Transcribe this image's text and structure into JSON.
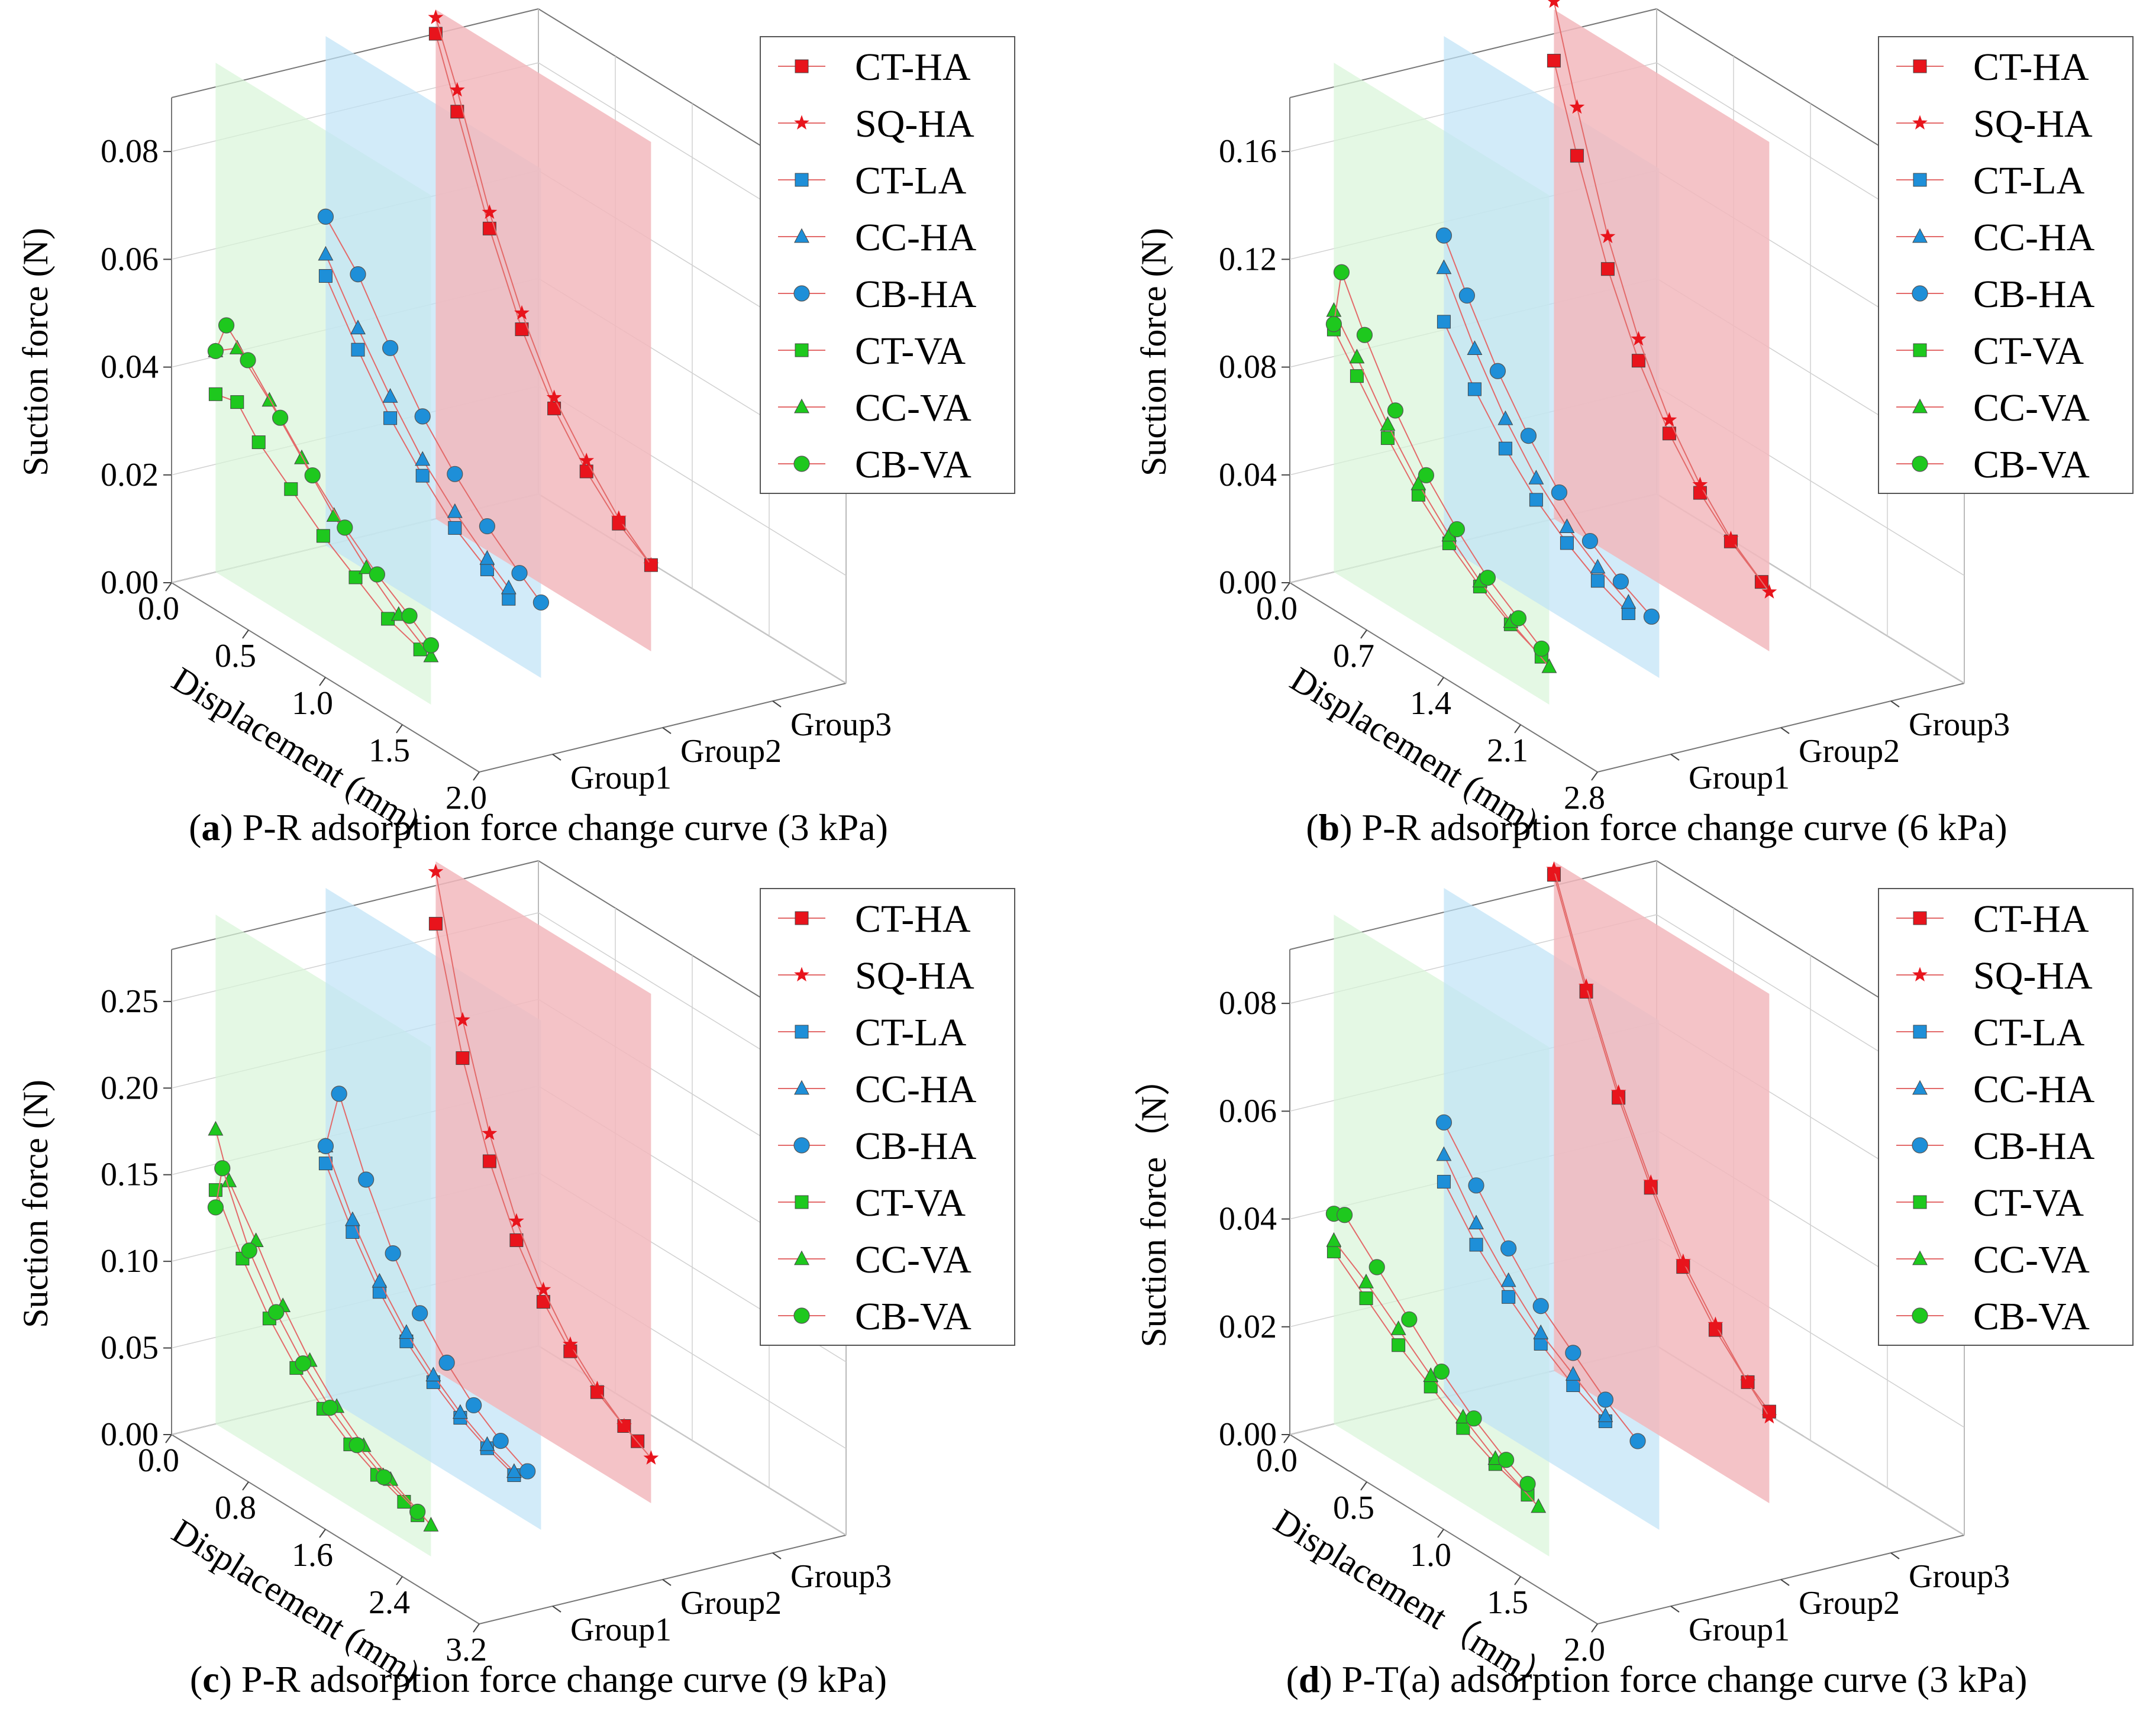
{
  "chart_data": [
    {
      "id": "a",
      "type": "line3d",
      "caption_letter": "a",
      "caption_text": "P-R adsorption force change curve (3 kPa)",
      "ylabel": "Suction force (N)",
      "xlabel": "Displacement (mm)",
      "zlabels": [
        "Group1",
        "Group2",
        "Group3"
      ],
      "x_ticks": [
        "0.0",
        "0.5",
        "1.0",
        "1.5",
        "2.0"
      ],
      "x_range": [
        0,
        2.0
      ],
      "y_ticks": [
        "0.00",
        "0.02",
        "0.04",
        "0.06",
        "0.08"
      ],
      "y_range": [
        0,
        0.09
      ],
      "legend": [
        "CT-HA",
        "SQ-HA",
        "CT-LA",
        "CC-HA",
        "CB-HA",
        "CT-VA",
        "CC-VA",
        "CB-VA"
      ],
      "series": [
        {
          "name": "CT-VA",
          "group": 0,
          "x": [
            0.0,
            0.2,
            0.4,
            0.7,
            1.0,
            1.3,
            1.6,
            1.9
          ],
          "y": [
            0.033,
            0.034,
            0.029,
            0.024,
            0.019,
            0.015,
            0.011,
            0.009
          ]
        },
        {
          "name": "CC-VA",
          "group": 0,
          "x": [
            0.0,
            0.2,
            0.5,
            0.8,
            1.1,
            1.4,
            1.7,
            2.0
          ],
          "y": [
            0.041,
            0.044,
            0.038,
            0.031,
            0.024,
            0.018,
            0.013,
            0.009
          ]
        },
        {
          "name": "CB-VA",
          "group": 0,
          "x": [
            0.0,
            0.1,
            0.3,
            0.6,
            0.9,
            1.2,
            1.5,
            1.8,
            2.0
          ],
          "y": [
            0.041,
            0.047,
            0.043,
            0.036,
            0.029,
            0.023,
            0.018,
            0.014,
            0.011
          ]
        },
        {
          "name": "CT-LA",
          "group": 1,
          "x": [
            0.0,
            0.3,
            0.6,
            0.9,
            1.2,
            1.5,
            1.7
          ],
          "y": [
            0.05,
            0.04,
            0.031,
            0.024,
            0.018,
            0.014,
            0.011
          ]
        },
        {
          "name": "CC-HA",
          "group": 1,
          "x": [
            0.0,
            0.3,
            0.6,
            0.9,
            1.2,
            1.5,
            1.7
          ],
          "y": [
            0.054,
            0.044,
            0.035,
            0.027,
            0.021,
            0.016,
            0.013
          ]
        },
        {
          "name": "CB-HA",
          "group": 1,
          "x": [
            0.0,
            0.3,
            0.6,
            0.9,
            1.2,
            1.5,
            1.8,
            2.0
          ],
          "y": [
            0.061,
            0.054,
            0.044,
            0.035,
            0.028,
            0.022,
            0.017,
            0.014
          ]
        },
        {
          "name": "CT-HA",
          "group": 2,
          "x": [
            0.0,
            0.2,
            0.5,
            0.8,
            1.1,
            1.4,
            1.7,
            2.0
          ],
          "y": [
            0.09,
            0.078,
            0.06,
            0.045,
            0.034,
            0.026,
            0.02,
            0.016
          ]
        },
        {
          "name": "SQ-HA",
          "group": 2,
          "x": [
            0.0,
            0.2,
            0.5,
            0.8,
            1.1,
            1.4,
            1.7,
            2.0
          ],
          "y": [
            0.093,
            0.082,
            0.063,
            0.048,
            0.036,
            0.028,
            0.021,
            0.016
          ]
        }
      ]
    },
    {
      "id": "b",
      "type": "line3d",
      "caption_letter": "b",
      "caption_text": "P-R adsorption force change curve (6 kPa)",
      "ylabel": "Suction force (N)",
      "xlabel": "Displacement (mm)",
      "zlabels": [
        "Group1",
        "Group2",
        "Group3"
      ],
      "x_ticks": [
        "0.0",
        "0.7",
        "1.4",
        "2.1",
        "2.8"
      ],
      "x_range": [
        0,
        2.8
      ],
      "y_ticks": [
        "0.00",
        "0.04",
        "0.08",
        "0.12",
        "0.16"
      ],
      "y_range": [
        0,
        0.18
      ],
      "legend": [
        "CT-HA",
        "SQ-HA",
        "CT-LA",
        "CC-HA",
        "CB-HA",
        "CT-VA",
        "CC-VA",
        "CB-VA"
      ],
      "series": [
        {
          "name": "CT-VA",
          "group": 0,
          "x": [
            0.0,
            0.3,
            0.7,
            1.1,
            1.5,
            1.9,
            2.3,
            2.7
          ],
          "y": [
            0.09,
            0.078,
            0.062,
            0.048,
            0.037,
            0.028,
            0.021,
            0.016
          ]
        },
        {
          "name": "CC-VA",
          "group": 0,
          "x": [
            0.0,
            0.3,
            0.7,
            1.1,
            1.5,
            1.9,
            2.3,
            2.8
          ],
          "y": [
            0.097,
            0.085,
            0.067,
            0.052,
            0.04,
            0.03,
            0.022,
            0.014
          ]
        },
        {
          "name": "CB-VA",
          "group": 0,
          "x": [
            0.0,
            0.1,
            0.4,
            0.8,
            1.2,
            1.6,
            2.0,
            2.4,
            2.7
          ],
          "y": [
            0.092,
            0.113,
            0.095,
            0.074,
            0.057,
            0.044,
            0.033,
            0.025,
            0.019
          ]
        },
        {
          "name": "CT-LA",
          "group": 1,
          "x": [
            0.0,
            0.4,
            0.8,
            1.2,
            1.6,
            2.0,
            2.4
          ],
          "y": [
            0.083,
            0.065,
            0.05,
            0.038,
            0.029,
            0.022,
            0.017
          ]
        },
        {
          "name": "CC-HA",
          "group": 1,
          "x": [
            0.0,
            0.4,
            0.8,
            1.2,
            1.6,
            2.0,
            2.4
          ],
          "y": [
            0.103,
            0.08,
            0.061,
            0.046,
            0.035,
            0.027,
            0.021
          ]
        },
        {
          "name": "CB-HA",
          "group": 1,
          "x": [
            0.0,
            0.3,
            0.7,
            1.1,
            1.5,
            1.9,
            2.3,
            2.7
          ],
          "y": [
            0.115,
            0.098,
            0.077,
            0.06,
            0.046,
            0.035,
            0.027,
            0.021
          ]
        },
        {
          "name": "CT-HA",
          "group": 2,
          "x": [
            0.0,
            0.3,
            0.7,
            1.1,
            1.5,
            1.9,
            2.3,
            2.7
          ],
          "y": [
            0.17,
            0.14,
            0.105,
            0.078,
            0.058,
            0.043,
            0.032,
            0.024
          ]
        },
        {
          "name": "SQ-HA",
          "group": 2,
          "x": [
            0.0,
            0.3,
            0.7,
            1.1,
            1.5,
            1.9,
            2.3,
            2.8
          ],
          "y": [
            0.192,
            0.158,
            0.117,
            0.086,
            0.063,
            0.046,
            0.033,
            0.022
          ]
        }
      ]
    },
    {
      "id": "c",
      "type": "line3d",
      "caption_letter": "c",
      "caption_text": "P-R adsorption force change curve (9 kPa)",
      "ylabel": "Suction force (N)",
      "xlabel": "Displacement (mm)",
      "zlabels": [
        "Group1",
        "Group2",
        "Group3"
      ],
      "x_ticks": [
        "0.0",
        "0.8",
        "1.6",
        "2.4",
        "3.2"
      ],
      "x_range": [
        0,
        3.2
      ],
      "y_ticks": [
        "0.00",
        "0.05",
        "0.10",
        "0.15",
        "0.20",
        "0.25"
      ],
      "y_range": [
        0,
        0.28
      ],
      "legend": [
        "CT-HA",
        "SQ-HA",
        "CT-LA",
        "CC-HA",
        "CB-HA",
        "CT-VA",
        "CC-VA",
        "CB-VA"
      ],
      "series": [
        {
          "name": "CT-VA",
          "group": 0,
          "x": [
            0.0,
            0.4,
            0.8,
            1.2,
            1.6,
            2.0,
            2.4,
            2.8,
            3.0
          ],
          "y": [
            0.135,
            0.105,
            0.08,
            0.061,
            0.047,
            0.036,
            0.028,
            0.022,
            0.019
          ]
        },
        {
          "name": "CC-VA",
          "group": 0,
          "x": [
            0.0,
            0.2,
            0.6,
            1.0,
            1.4,
            1.8,
            2.2,
            2.6,
            3.2
          ],
          "y": [
            0.17,
            0.145,
            0.12,
            0.092,
            0.07,
            0.053,
            0.04,
            0.03,
            0.018
          ]
        },
        {
          "name": "CB-VA",
          "group": 0,
          "x": [
            0.0,
            0.1,
            0.5,
            0.9,
            1.3,
            1.7,
            2.1,
            2.5,
            3.0
          ],
          "y": [
            0.125,
            0.15,
            0.112,
            0.086,
            0.066,
            0.05,
            0.038,
            0.029,
            0.021
          ]
        },
        {
          "name": "CT-LA",
          "group": 1,
          "x": [
            0.0,
            0.4,
            0.8,
            1.2,
            1.6,
            2.0,
            2.4,
            2.8
          ],
          "y": [
            0.135,
            0.105,
            0.08,
            0.061,
            0.047,
            0.036,
            0.028,
            0.022
          ]
        },
        {
          "name": "CC-HA",
          "group": 1,
          "x": [
            0.0,
            0.4,
            0.8,
            1.2,
            1.6,
            2.0,
            2.4,
            2.8
          ],
          "y": [
            0.145,
            0.112,
            0.086,
            0.066,
            0.051,
            0.039,
            0.03,
            0.024
          ]
        },
        {
          "name": "CB-HA",
          "group": 1,
          "x": [
            0.0,
            0.2,
            0.6,
            1.0,
            1.4,
            1.8,
            2.2,
            2.6,
            3.0
          ],
          "y": [
            0.145,
            0.18,
            0.14,
            0.107,
            0.082,
            0.063,
            0.048,
            0.037,
            0.029
          ]
        },
        {
          "name": "CT-HA",
          "group": 2,
          "x": [
            0.0,
            0.4,
            0.8,
            1.2,
            1.6,
            2.0,
            2.4,
            2.8,
            3.0
          ],
          "y": [
            0.258,
            0.19,
            0.14,
            0.104,
            0.078,
            0.059,
            0.045,
            0.035,
            0.031
          ]
        },
        {
          "name": "SQ-HA",
          "group": 2,
          "x": [
            0.0,
            0.4,
            0.8,
            1.2,
            1.6,
            2.0,
            2.4,
            2.8,
            3.2
          ],
          "y": [
            0.288,
            0.212,
            0.156,
            0.115,
            0.085,
            0.063,
            0.047,
            0.035,
            0.026
          ]
        }
      ]
    },
    {
      "id": "d",
      "type": "line3d",
      "caption_letter": "d",
      "caption_text": "P-T(a) adsorption force change curve (3 kPa)",
      "ylabel": "Suction force（N）",
      "xlabel": "Displacement（mm）",
      "zlabels": [
        "Group1",
        "Group2",
        "Group3"
      ],
      "x_ticks": [
        "0.0",
        "0.5",
        "1.0",
        "1.5",
        "2.0"
      ],
      "x_range": [
        0,
        2.0
      ],
      "y_ticks": [
        "0.00",
        "0.02",
        "0.04",
        "0.06",
        "0.08"
      ],
      "y_range": [
        0,
        0.09
      ],
      "legend": [
        "CT-HA",
        "SQ-HA",
        "CT-LA",
        "CC-HA",
        "CB-HA",
        "CT-VA",
        "CC-VA",
        "CB-VA"
      ],
      "series": [
        {
          "name": "CT-VA",
          "group": 0,
          "x": [
            0.0,
            0.3,
            0.6,
            0.9,
            1.2,
            1.5,
            1.8
          ],
          "y": [
            0.032,
            0.027,
            0.022,
            0.018,
            0.014,
            0.011,
            0.009
          ]
        },
        {
          "name": "CC-VA",
          "group": 0,
          "x": [
            0.0,
            0.3,
            0.6,
            0.9,
            1.2,
            1.5,
            1.9
          ],
          "y": [
            0.034,
            0.03,
            0.025,
            0.02,
            0.016,
            0.012,
            0.008
          ]
        },
        {
          "name": "CB-VA",
          "group": 0,
          "x": [
            0.0,
            0.1,
            0.4,
            0.7,
            1.0,
            1.3,
            1.6,
            1.8
          ],
          "y": [
            0.039,
            0.04,
            0.034,
            0.028,
            0.022,
            0.017,
            0.013,
            0.011
          ]
        },
        {
          "name": "CT-LA",
          "group": 1,
          "x": [
            0.0,
            0.3,
            0.6,
            0.9,
            1.2,
            1.5
          ],
          "y": [
            0.04,
            0.032,
            0.026,
            0.021,
            0.017,
            0.014
          ]
        },
        {
          "name": "CC-HA",
          "group": 1,
          "x": [
            0.0,
            0.3,
            0.6,
            0.9,
            1.2,
            1.5
          ],
          "y": [
            0.045,
            0.036,
            0.029,
            0.023,
            0.019,
            0.015
          ]
        },
        {
          "name": "CB-HA",
          "group": 1,
          "x": [
            0.0,
            0.3,
            0.6,
            0.9,
            1.2,
            1.5,
            1.8
          ],
          "y": [
            0.051,
            0.043,
            0.035,
            0.028,
            0.023,
            0.018,
            0.014
          ]
        },
        {
          "name": "CT-HA",
          "group": 2,
          "x": [
            0.0,
            0.3,
            0.6,
            0.9,
            1.2,
            1.5,
            1.8,
            2.0
          ],
          "y": [
            0.092,
            0.074,
            0.058,
            0.045,
            0.034,
            0.026,
            0.02,
            0.017
          ]
        },
        {
          "name": "SQ-HA",
          "group": 2,
          "x": [
            0.0,
            0.3,
            0.6,
            0.9,
            1.2,
            1.5,
            1.8,
            2.0
          ],
          "y": [
            0.093,
            0.075,
            0.059,
            0.046,
            0.035,
            0.027,
            0.02,
            0.016
          ]
        }
      ]
    }
  ],
  "series_style": {
    "CT-HA": {
      "color": "#e8141c",
      "marker": "square"
    },
    "SQ-HA": {
      "color": "#e8141c",
      "marker": "star"
    },
    "CT-LA": {
      "color": "#1e8fd8",
      "marker": "square"
    },
    "CC-HA": {
      "color": "#1e8fd8",
      "marker": "triangle"
    },
    "CB-HA": {
      "color": "#1e8fd8",
      "marker": "circle"
    },
    "CT-VA": {
      "color": "#1ec81e",
      "marker": "square"
    },
    "CC-VA": {
      "color": "#1ec81e",
      "marker": "triangle"
    },
    "CB-VA": {
      "color": "#1ec81e",
      "marker": "circle"
    }
  },
  "group_plane_colors": [
    "#d8f5d8",
    "#bfe3f7",
    "#f2b9bd"
  ]
}
